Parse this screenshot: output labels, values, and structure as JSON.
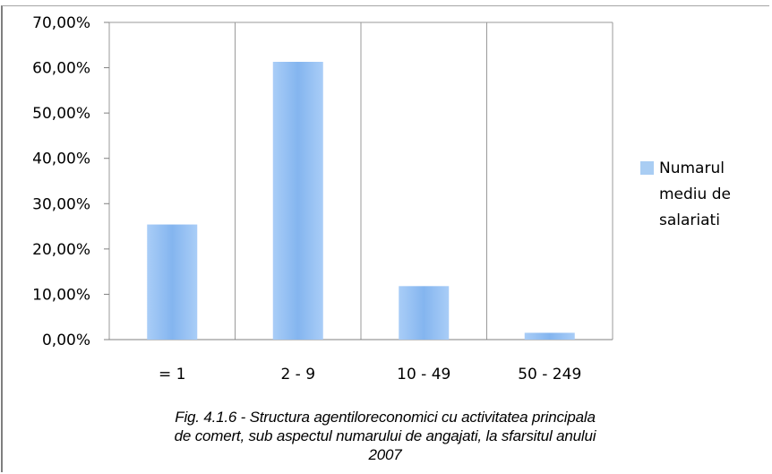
{
  "chart_data": {
    "type": "bar",
    "categories": [
      "= 1",
      "2 - 9",
      "10 - 49",
      "50 - 249"
    ],
    "series": [
      {
        "name": "Numarul mediu de salariati",
        "values": [
          25.4,
          61.3,
          11.8,
          1.5
        ],
        "color": "#8ab8f0"
      }
    ],
    "ylim": [
      0,
      70
    ],
    "yticks": [
      "0,00%",
      "10,00%",
      "20,00%",
      "30,00%",
      "40,00%",
      "50,00%",
      "60,00%",
      "70,00%"
    ],
    "grid": "vertical",
    "legend_position": "right"
  },
  "legend": {
    "label": "Numarul mediu de salariati",
    "color": "#a9cdf3"
  },
  "caption": {
    "line1": "Fig. 4.1.6 - Structura agentiloreconomici cu activitatea principala",
    "line2": "de comert, sub aspectul numarului de angajati, la sfarsitul anului",
    "line3": "2007"
  }
}
